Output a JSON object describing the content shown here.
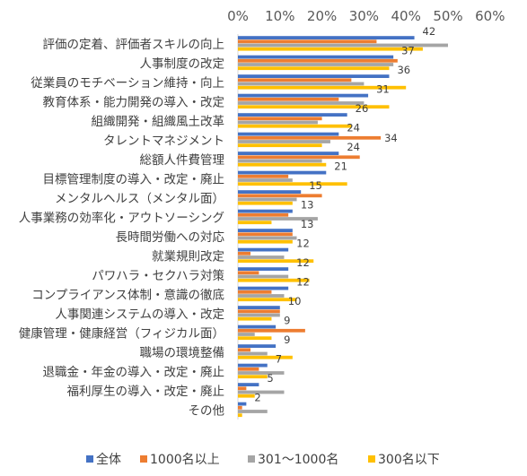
{
  "chart_data": {
    "type": "bar",
    "orientation": "horizontal",
    "x_axis_position": "top",
    "xlim": [
      0,
      60
    ],
    "x_ticks": [
      "0%",
      "10%",
      "20%",
      "30%",
      "40%",
      "50%",
      "60%"
    ],
    "grid": false,
    "legend_position": "bottom",
    "categories": [
      "評価の定着、評価者スキルの向上",
      "人事制度の改定",
      "従業員のモチベーション維持・向上",
      "教育体系・能力開発の導入・改定",
      "組織開発・組織風土改革",
      "タレントマネジメント",
      "総額人件費管理",
      "目標管理制度の導入・改定・廃止",
      "メンタルヘルス（メンタル面）",
      "人事業務の効率化・アウトソーシング",
      "長時間労働への対応",
      "就業規則改定",
      "パワハラ・セクハラ対策",
      "コンプライアンス体制・意識の徹底",
      "人事関連システムの導入・改定",
      "健康管理・健康経営（フィジカル面）",
      "職場の環境整備",
      "退職金・年金の導入・改定・廃止",
      "福利厚生の導入・改定・廃止",
      "その他"
    ],
    "series": [
      {
        "name": "全体",
        "color": "#4472C4",
        "values": [
          42,
          37,
          36,
          31,
          26,
          24,
          24,
          21,
          15,
          13,
          13,
          12,
          12,
          12,
          10,
          9,
          9,
          7,
          5,
          2
        ]
      },
      {
        "name": "1000名以上",
        "color": "#ED7D31",
        "values": [
          33,
          38,
          27,
          24,
          20,
          34,
          29,
          12,
          20,
          12,
          13,
          3,
          5,
          8,
          10,
          16,
          3,
          5,
          2,
          1
        ]
      },
      {
        "name": "301～1000名",
        "color": "#A5A5A5",
        "values": [
          50,
          37,
          30,
          30,
          19,
          22,
          20,
          13,
          14,
          19,
          14,
          11,
          12,
          11,
          10,
          4,
          7,
          11,
          11,
          7
        ]
      },
      {
        "name": "300名以下",
        "color": "#FFC000",
        "values": [
          44,
          36,
          40,
          36,
          27,
          20,
          21,
          26,
          13,
          8,
          13,
          18,
          17,
          14,
          8,
          8,
          13,
          7,
          4,
          1
        ]
      }
    ],
    "data_labels": [
      {
        "series": "全体",
        "index": 0,
        "text": "42",
        "color": "#404040"
      },
      {
        "series": "全体",
        "index": 1,
        "text": "37",
        "color": "#404040"
      },
      {
        "series": "全体",
        "index": 2,
        "text": "36",
        "color": "#404040"
      },
      {
        "series": "全体",
        "index": 3,
        "text": "31",
        "color": "#404040"
      },
      {
        "series": "全体",
        "index": 4,
        "text": "26",
        "color": "#404040"
      },
      {
        "series": "全体",
        "index": 5,
        "text": "24",
        "color": "#404040"
      },
      {
        "series": "1000名以上",
        "index": 5,
        "text": "34",
        "color": "#E00000"
      },
      {
        "series": "全体",
        "index": 6,
        "text": "24",
        "color": "#404040"
      },
      {
        "series": "全体",
        "index": 7,
        "text": "21",
        "color": "#404040"
      },
      {
        "series": "全体",
        "index": 8,
        "text": "15",
        "color": "#404040"
      },
      {
        "series": "全体",
        "index": 9,
        "text": "13",
        "color": "#404040"
      },
      {
        "series": "全体",
        "index": 10,
        "text": "13",
        "color": "#404040"
      },
      {
        "series": "全体",
        "index": 11,
        "text": "12",
        "color": "#404040"
      },
      {
        "series": "全体",
        "index": 12,
        "text": "12",
        "color": "#404040"
      },
      {
        "series": "全体",
        "index": 13,
        "text": "12",
        "color": "#404040"
      },
      {
        "series": "全体",
        "index": 14,
        "text": "10",
        "color": "#404040"
      },
      {
        "series": "全体",
        "index": 15,
        "text": "9",
        "color": "#404040"
      },
      {
        "series": "全体",
        "index": 16,
        "text": "9",
        "color": "#404040"
      },
      {
        "series": "全体",
        "index": 17,
        "text": "7",
        "color": "#404040"
      },
      {
        "series": "全体",
        "index": 18,
        "text": "5",
        "color": "#404040"
      },
      {
        "series": "全体",
        "index": 19,
        "text": "2",
        "color": "#404040"
      }
    ]
  }
}
